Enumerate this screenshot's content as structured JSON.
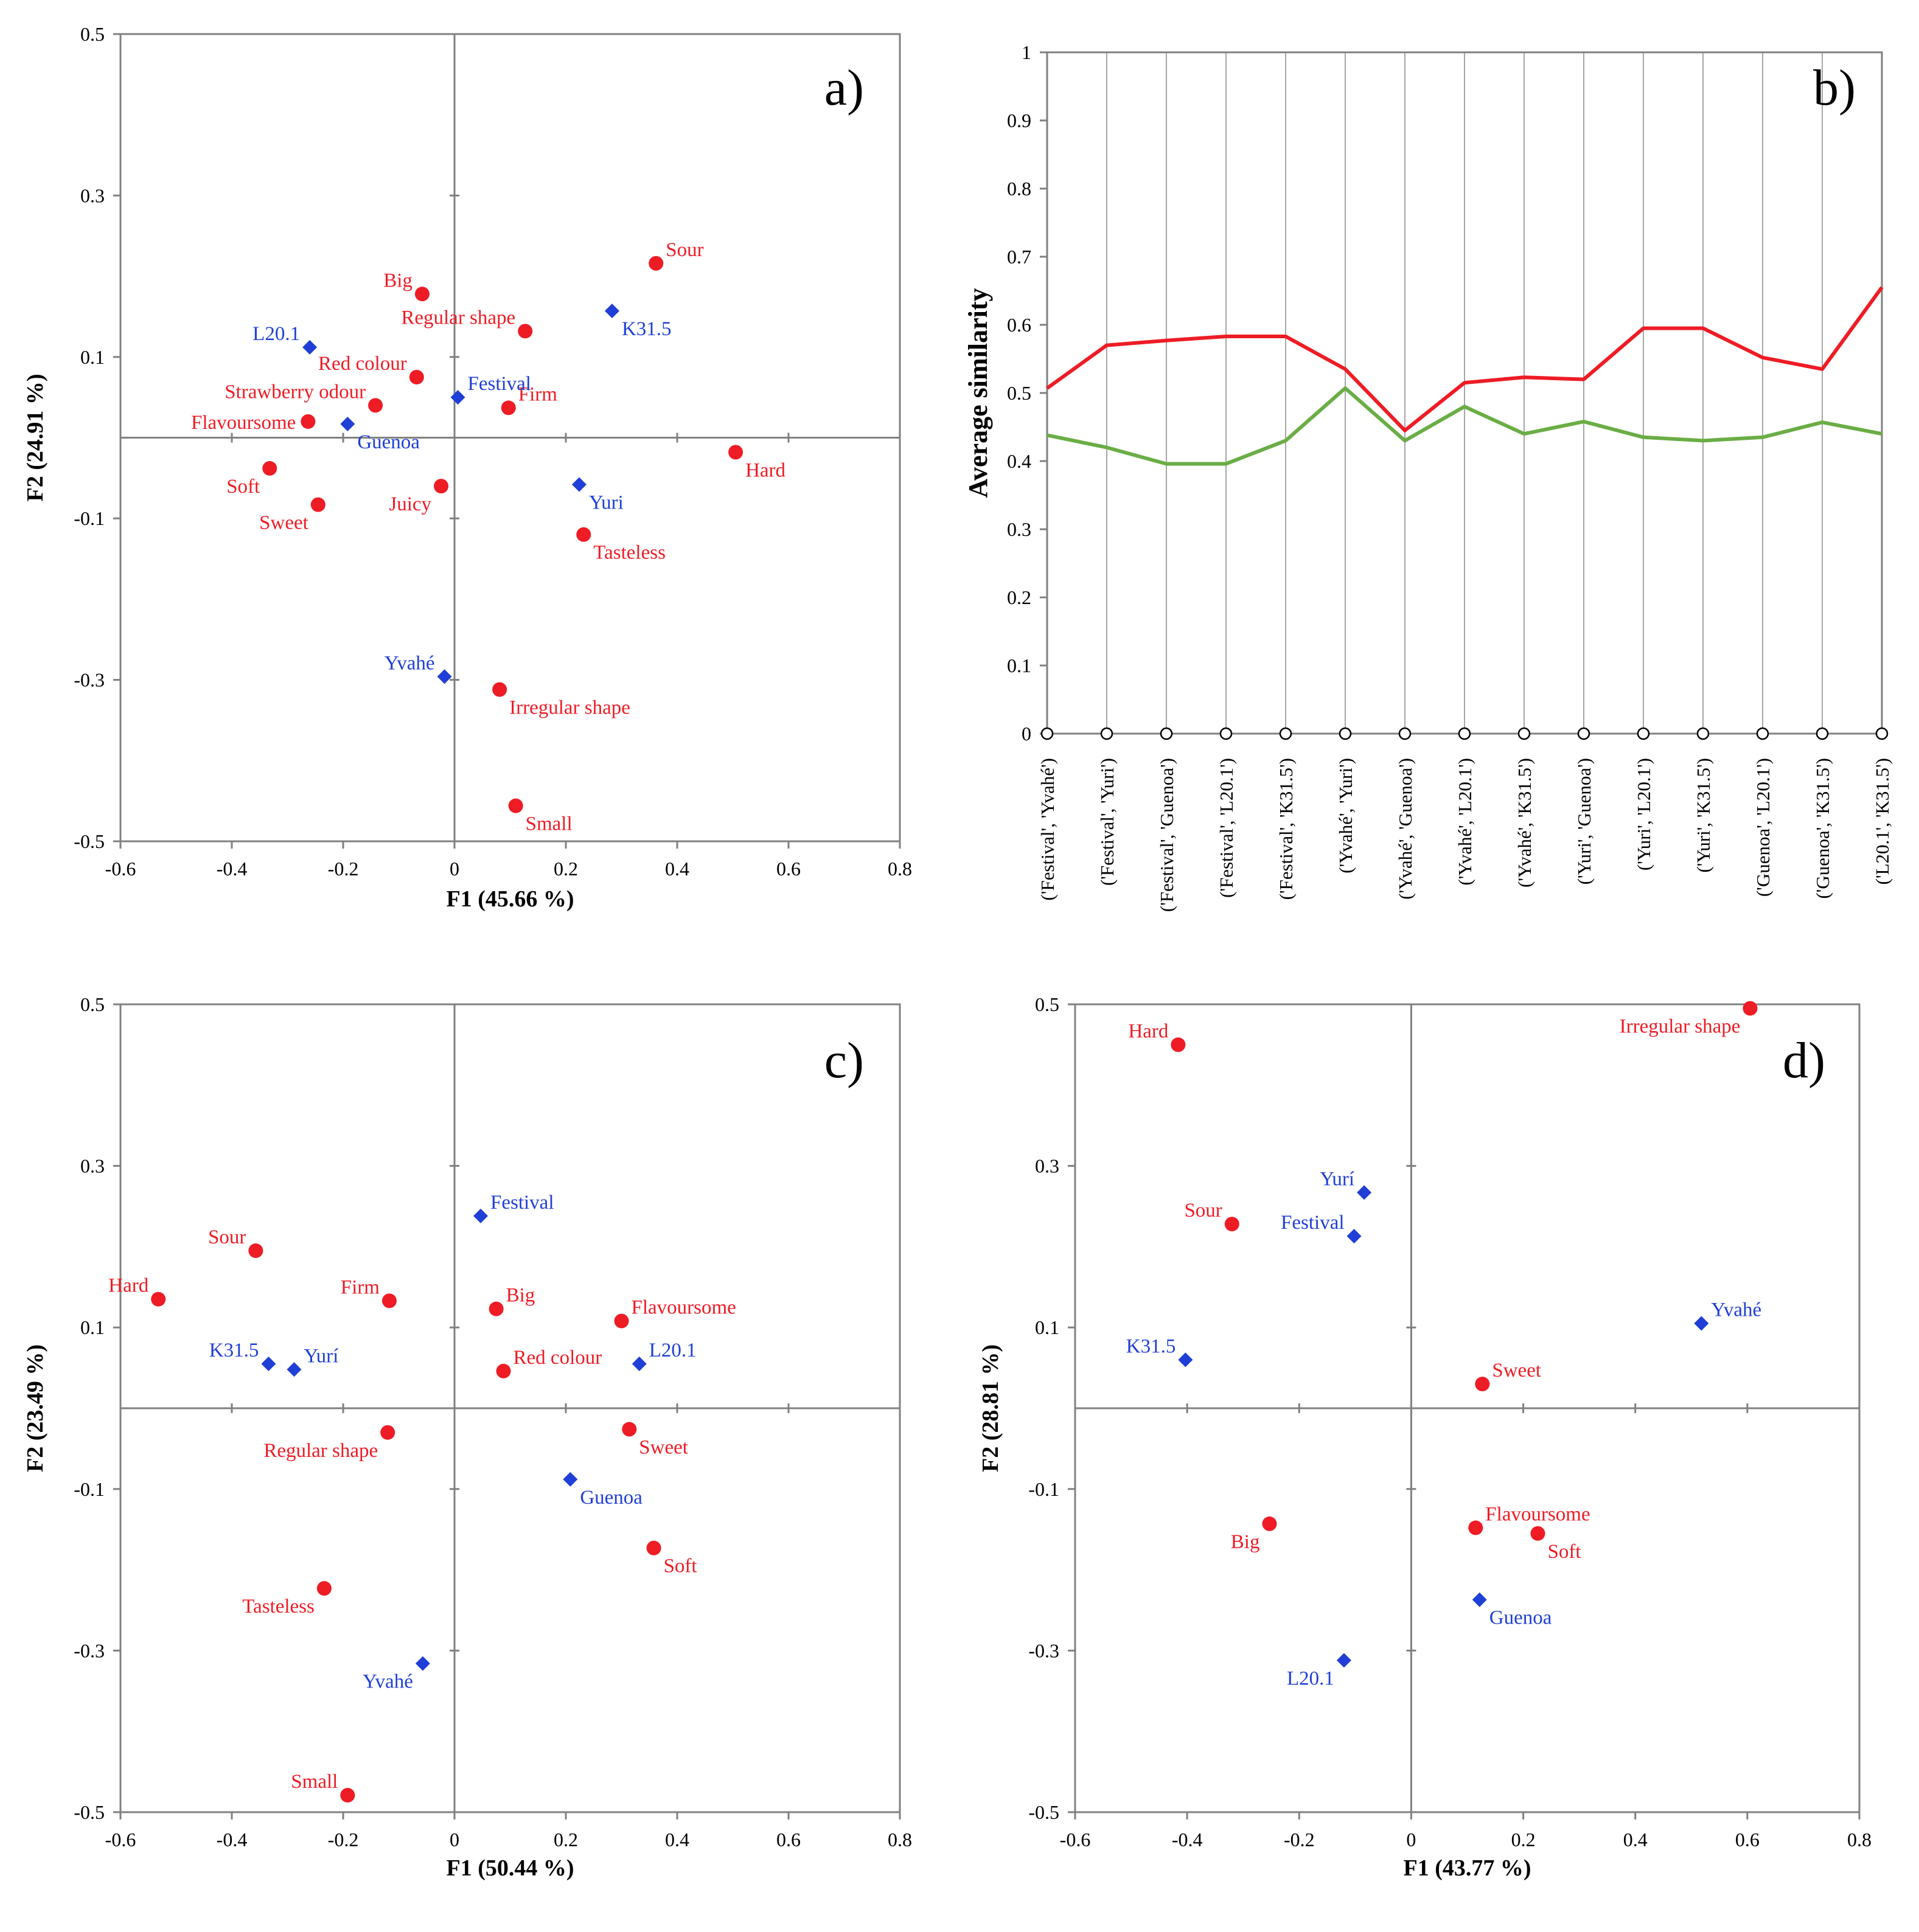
{
  "colors": {
    "attribute": "#ee1c25",
    "cultivar": "#1f3fd6",
    "line_red": "#ee1c25",
    "line_green": "#6aad45",
    "axis": "#808080",
    "grid": "#a6a6a6"
  },
  "chart_data": [
    {
      "panel": "a)",
      "type": "scatter",
      "xlabel": "F1 (45.66 %)",
      "ylabel": "F2 (24.91 %)",
      "xlim": [
        -0.6,
        0.8
      ],
      "ylim": [
        -0.5,
        0.5
      ],
      "xticks": [
        "-0.6",
        "-0.4",
        "-0.2",
        "0",
        "0.2",
        "0.4",
        "0.6",
        "0.8"
      ],
      "yticks": [
        "0.5",
        "0.3",
        "0.1",
        "-0.1",
        "-0.3",
        "-0.5"
      ],
      "attributes": [
        {
          "label": "Sour",
          "x": 0.362,
          "y": 0.216,
          "pos": "ne"
        },
        {
          "label": "Big",
          "x": -0.058,
          "y": 0.178,
          "pos": "nw"
        },
        {
          "label": "Regular shape",
          "x": 0.127,
          "y": 0.132,
          "pos": "nw"
        },
        {
          "label": "Red colour",
          "x": -0.068,
          "y": 0.075,
          "pos": "nw"
        },
        {
          "label": "Strawberry odour",
          "x": -0.142,
          "y": 0.04,
          "pos": "nw"
        },
        {
          "label": "Flavoursome",
          "x": -0.263,
          "y": 0.02,
          "pos": "w"
        },
        {
          "label": "Firm",
          "x": 0.097,
          "y": 0.037,
          "pos": "ne"
        },
        {
          "label": "Hard",
          "x": 0.505,
          "y": -0.018,
          "pos": "se"
        },
        {
          "label": "Soft",
          "x": -0.332,
          "y": -0.038,
          "pos": "sw"
        },
        {
          "label": "Juicy",
          "x": -0.024,
          "y": -0.06,
          "pos": "sw"
        },
        {
          "label": "Sweet",
          "x": -0.245,
          "y": -0.083,
          "pos": "sw"
        },
        {
          "label": "Tasteless",
          "x": 0.232,
          "y": -0.12,
          "pos": "se"
        },
        {
          "label": "Irregular shape",
          "x": 0.081,
          "y": -0.312,
          "pos": "se"
        },
        {
          "label": "Small",
          "x": 0.11,
          "y": -0.456,
          "pos": "se"
        }
      ],
      "cultivars": [
        {
          "label": "K31.5",
          "x": 0.283,
          "y": 0.157,
          "pos": "se"
        },
        {
          "label": "L20.1",
          "x": -0.26,
          "y": 0.112,
          "pos": "nw"
        },
        {
          "label": "Festival",
          "x": 0.006,
          "y": 0.05,
          "pos": "ne"
        },
        {
          "label": "Guenoa",
          "x": -0.192,
          "y": 0.017,
          "pos": "se"
        },
        {
          "label": "Yuri",
          "x": 0.224,
          "y": -0.058,
          "pos": "se"
        },
        {
          "label": "Yvahé",
          "x": -0.018,
          "y": -0.296,
          "pos": "nw"
        }
      ]
    },
    {
      "panel": "b)",
      "type": "line",
      "ylabel": "Average similarity",
      "ylim": [
        0,
        1
      ],
      "yticks": [
        "1",
        "0.9",
        "0.8",
        "0.7",
        "0.6",
        "0.5",
        "0.4",
        "0.3",
        "0.2",
        "0.1",
        "0"
      ],
      "categories": [
        "('Festival', 'Yvahé')",
        "('Festival', 'Yuri')",
        "('Festival', 'Guenoa')",
        "('Festival', 'L20.1')",
        "('Festival', 'K31.5')",
        "('Yvahé', 'Yuri')",
        "('Yvahé', 'Guenoa')",
        "('Yvahé', 'L20.1')",
        "('Yvahé', 'K31.5')",
        "('Yuri', 'Guenoa')",
        "('Yuri', 'L20.1')",
        "('Yuri', 'K31.5')",
        "('Guenoa', 'L20.1')",
        "('Guenoa', 'K31.5')",
        "('L20.1', 'K31.5')"
      ],
      "series": [
        {
          "name": "red",
          "values": [
            0.507,
            0.57,
            0.577,
            0.583,
            0.583,
            0.535,
            0.445,
            0.515,
            0.523,
            0.52,
            0.595,
            0.595,
            0.552,
            0.535,
            0.655
          ]
        },
        {
          "name": "green",
          "values": [
            0.438,
            0.42,
            0.396,
            0.396,
            0.43,
            0.507,
            0.43,
            0.48,
            0.44,
            0.458,
            0.435,
            0.43,
            0.435,
            0.457,
            0.44
          ]
        }
      ]
    },
    {
      "panel": "c)",
      "type": "scatter",
      "xlabel": "F1 (50.44 %)",
      "ylabel": "F2 (23.49 %)",
      "xlim": [
        -0.6,
        0.8
      ],
      "ylim": [
        -0.5,
        0.5
      ],
      "xticks": [
        "-0.6",
        "-0.4",
        "-0.2",
        "0",
        "0.2",
        "0.4",
        "0.6",
        "0.8"
      ],
      "yticks": [
        "0.5",
        "0.3",
        "0.1",
        "-0.1",
        "-0.3",
        "-0.5"
      ],
      "attributes": [
        {
          "label": "Sour",
          "x": -0.357,
          "y": 0.195,
          "pos": "nw"
        },
        {
          "label": "Hard",
          "x": -0.532,
          "y": 0.135,
          "pos": "nw"
        },
        {
          "label": "Firm",
          "x": -0.117,
          "y": 0.133,
          "pos": "nw"
        },
        {
          "label": "Big",
          "x": 0.075,
          "y": 0.123,
          "pos": "ne"
        },
        {
          "label": "Flavoursome",
          "x": 0.3,
          "y": 0.108,
          "pos": "ne"
        },
        {
          "label": "Red colour",
          "x": 0.088,
          "y": 0.046,
          "pos": "ne"
        },
        {
          "label": "Regular shape",
          "x": -0.12,
          "y": -0.03,
          "pos": "sw"
        },
        {
          "label": "Sweet",
          "x": 0.314,
          "y": -0.026,
          "pos": "se"
        },
        {
          "label": "Soft",
          "x": 0.358,
          "y": -0.173,
          "pos": "se"
        },
        {
          "label": "Tasteless",
          "x": -0.234,
          "y": -0.223,
          "pos": "sw"
        },
        {
          "label": "Small",
          "x": -0.192,
          "y": -0.479,
          "pos": "nw"
        }
      ],
      "cultivars": [
        {
          "label": "Festival",
          "x": 0.047,
          "y": 0.238,
          "pos": "ne"
        },
        {
          "label": "L20.1",
          "x": 0.332,
          "y": 0.055,
          "pos": "ne"
        },
        {
          "label": "K31.5",
          "x": -0.334,
          "y": 0.055,
          "pos": "nw"
        },
        {
          "label": "Yurí",
          "x": -0.288,
          "y": 0.048,
          "pos": "ne"
        },
        {
          "label": "Guenoa",
          "x": 0.208,
          "y": -0.088,
          "pos": "se"
        },
        {
          "label": "Yvahé",
          "x": -0.057,
          "y": -0.316,
          "pos": "sw"
        }
      ]
    },
    {
      "panel": "d)",
      "type": "scatter",
      "xlabel": "F1 (43.77 %)",
      "ylabel": "F2 (28.81 %)",
      "xlim": [
        -0.6,
        0.8
      ],
      "ylim": [
        -0.5,
        0.5
      ],
      "xticks": [
        "-0.6",
        "-0.4",
        "-0.2",
        "0",
        "0.2",
        "0.4",
        "0.6",
        "0.8"
      ],
      "yticks": [
        "0.5",
        "0.3",
        "0.1",
        "-0.1",
        "-0.3",
        "-0.5"
      ],
      "attributes": [
        {
          "label": "Irregular shape",
          "x": 0.605,
          "y": 0.495,
          "pos": "sw"
        },
        {
          "label": "Hard",
          "x": -0.416,
          "y": 0.45,
          "pos": "nw"
        },
        {
          "label": "Sour",
          "x": -0.32,
          "y": 0.228,
          "pos": "nw"
        },
        {
          "label": "Sweet",
          "x": 0.127,
          "y": 0.03,
          "pos": "ne"
        },
        {
          "label": "Big",
          "x": -0.253,
          "y": -0.143,
          "pos": "sw"
        },
        {
          "label": "Flavoursome",
          "x": 0.115,
          "y": -0.148,
          "pos": "ne"
        },
        {
          "label": "Soft",
          "x": 0.226,
          "y": -0.155,
          "pos": "se"
        }
      ],
      "cultivars": [
        {
          "label": "Yurí",
          "x": -0.084,
          "y": 0.267,
          "pos": "nw"
        },
        {
          "label": "Festival",
          "x": -0.102,
          "y": 0.213,
          "pos": "nw"
        },
        {
          "label": "Yvahé",
          "x": 0.518,
          "y": 0.105,
          "pos": "ne"
        },
        {
          "label": "K31.5",
          "x": -0.403,
          "y": 0.06,
          "pos": "nw"
        },
        {
          "label": "Guenoa",
          "x": 0.122,
          "y": -0.237,
          "pos": "se"
        },
        {
          "label": "L20.1",
          "x": -0.12,
          "y": -0.312,
          "pos": "sw"
        }
      ]
    }
  ]
}
